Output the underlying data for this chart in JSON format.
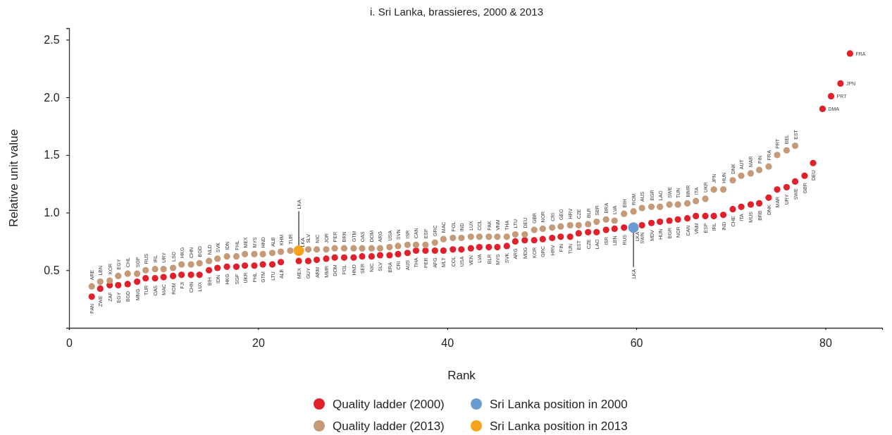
{
  "chart_data": {
    "type": "scatter",
    "title": "i. Sri Lanka, brassieres, 2000 & 2013",
    "xlabel": "Rank",
    "ylabel": "Relative unit value",
    "marker": "circle",
    "legend": "bottom",
    "xlim": [
      0,
      86
    ],
    "ylim": [
      0,
      2.6
    ],
    "xticks": [
      0,
      20,
      40,
      60,
      80
    ],
    "yticks": [
      {
        "value": 0.5,
        "label": "0.5"
      },
      {
        "value": 1,
        "label": "1.0"
      },
      {
        "value": 1.5,
        "label": "1.5"
      },
      {
        "value": 2,
        "label": "2.0"
      },
      {
        "value": 2.5,
        "label": "2.5"
      }
    ],
    "x": [
      2.4,
      3.3,
      4.3,
      5.2,
      6.2,
      7.2,
      8.1,
      9.1,
      10.0,
      11.0,
      11.9,
      12.9,
      13.8,
      14.8,
      15.7,
      16.7,
      17.7,
      18.6,
      19.6,
      20.5,
      21.5,
      22.4,
      23.4,
      24.3,
      25.3,
      26.2,
      27.2,
      28.1,
      29.1,
      30.1,
      31.0,
      32.0,
      32.9,
      33.9,
      34.8,
      35.8,
      36.7,
      37.7,
      38.7,
      39.6,
      40.6,
      41.5,
      42.5,
      43.4,
      44.4,
      45.3,
      46.3,
      47.2,
      48.2,
      49.2,
      50.1,
      51.1,
      52.0,
      53.0,
      53.9,
      54.9,
      55.8,
      56.8,
      57.7,
      58.7,
      59.7,
      60.6,
      61.6,
      62.5,
      63.5,
      64.4,
      65.4,
      66.3,
      67.3,
      68.2,
      69.2,
      70.2,
      71.1,
      72.1,
      73.0,
      74.0,
      74.9,
      75.9,
      76.8,
      77.8,
      78.7,
      79.7,
      80.6,
      81.6,
      82.6
    ],
    "series": [
      {
        "name": "Quality ladder (2000)",
        "color": "#e0202b",
        "values": [
          0.27,
          0.34,
          0.37,
          0.37,
          0.38,
          0.4,
          0.43,
          0.43,
          0.44,
          0.45,
          0.46,
          0.46,
          0.46,
          0.5,
          0.52,
          0.53,
          0.53,
          0.54,
          0.54,
          0.55,
          0.55,
          0.57,
          null,
          0.58,
          0.58,
          0.59,
          0.6,
          0.61,
          0.61,
          0.61,
          0.62,
          0.62,
          0.63,
          0.63,
          0.64,
          0.65,
          0.67,
          0.67,
          0.67,
          0.67,
          0.68,
          0.68,
          0.69,
          0.7,
          0.7,
          0.7,
          0.71,
          0.75,
          0.76,
          0.76,
          0.77,
          0.78,
          0.79,
          0.79,
          0.82,
          0.83,
          0.83,
          0.85,
          0.86,
          0.87,
          null,
          0.89,
          0.91,
          0.92,
          0.93,
          0.94,
          0.95,
          0.97,
          0.97,
          0.97,
          0.98,
          1.03,
          1.05,
          1.07,
          1.08,
          1.13,
          1.2,
          1.22,
          1.27,
          1.32,
          1.43,
          1.9,
          2.01,
          2.12,
          2.38
        ],
        "value_labels": [
          "PAN",
          "ZWE",
          "ZAF",
          "EGY",
          "BGD",
          "MNG",
          "TUR",
          "OAS",
          "MAC",
          "ROM",
          "FJI",
          "CHN",
          "LUX",
          "BIH",
          "IDN",
          "HKG",
          "SGP",
          "UKR",
          "PHL",
          "GTM",
          "LTU",
          "ALB",
          null,
          "MEX",
          "GUY",
          "ARM",
          "MMR",
          "DOM",
          "POL",
          "HND",
          "SER",
          "NIC",
          "SLV",
          "BRA",
          "CRI",
          "AUS",
          "THA",
          "PER",
          "AFG",
          "MLT",
          "COL",
          "USA",
          "VEN",
          "LVA",
          "BLR",
          "MYS",
          "SVK",
          "ARG",
          "MDG",
          "KOR",
          "GRC",
          "HRV",
          "FIN",
          "TUN",
          "EST",
          "CZE",
          "LAO",
          "ISR",
          "LBN",
          "RUS",
          null,
          "SWN",
          "MDV",
          "HUN",
          "BGR",
          "NOR",
          "CAN",
          "VNM",
          "ESP",
          "IRL",
          "IND",
          "CHE",
          "ITA",
          "MUS",
          "BRB",
          "DNK",
          "MAR",
          "URY",
          "SWE",
          "GBR",
          "DEU",
          "DMA",
          "PRT",
          "JPN",
          "FRA"
        ]
      },
      {
        "name": "Quality ladder (2013)",
        "color": "#c49a78",
        "values": [
          0.36,
          0.4,
          0.41,
          0.45,
          0.47,
          0.47,
          0.5,
          0.51,
          0.51,
          0.52,
          0.55,
          0.55,
          0.56,
          0.58,
          0.6,
          0.62,
          0.62,
          0.64,
          0.64,
          0.64,
          0.65,
          0.66,
          0.67,
          null,
          0.68,
          0.68,
          0.68,
          0.69,
          0.69,
          0.69,
          0.69,
          0.69,
          0.69,
          0.7,
          0.71,
          0.72,
          0.72,
          0.72,
          0.74,
          0.77,
          0.78,
          0.78,
          0.79,
          0.79,
          0.79,
          0.79,
          0.79,
          0.81,
          0.81,
          0.85,
          0.86,
          0.87,
          0.88,
          0.89,
          0.89,
          0.9,
          0.92,
          0.94,
          0.93,
          0.99,
          1.01,
          1.04,
          1.05,
          1.05,
          1.07,
          1.07,
          1.08,
          1.1,
          1.12,
          1.2,
          1.2,
          1.28,
          1.32,
          1.34,
          1.37,
          1.4,
          1.5,
          1.54,
          1.58,
          null,
          null,
          null,
          null,
          null,
          null
        ],
        "value_labels": [
          "ARE",
          "LBN",
          "KOR",
          "EGY",
          "CHL",
          "SGP",
          "RUS",
          "IRL",
          "URY",
          "LSO",
          "HKG",
          "CHN",
          "BGD",
          "NLD",
          "SVK",
          "IDN",
          "PHL",
          "MEX",
          "MYS",
          "HND",
          "ALB",
          "KHM",
          "TUR",
          null,
          "SLV",
          "NIC",
          "JOR",
          "PER",
          "BRN",
          "GTM",
          "OAS",
          "DOM",
          "ARG",
          "USA",
          "SVN",
          "ISR",
          "CAN",
          "ESP",
          "GRC",
          "MAC",
          "POL",
          "IND",
          "LUX",
          "COL",
          "PAK",
          "VNM",
          "THA",
          "LTU",
          "DEU",
          "GBR",
          "NOR",
          "CRI",
          "GEO",
          "HRV",
          "CZE",
          "BLR",
          "SBR",
          "BRA",
          "LVA",
          "BIH",
          "ROM",
          "AUS",
          "BGR",
          "LAO",
          "SWE",
          "TUN",
          "MMR",
          "ITA",
          "UKR",
          "JPN",
          "HUN",
          "DNK",
          "AUT",
          "MAR",
          "FIN",
          "FRA",
          "PRT",
          "BEL",
          "EST",
          null,
          null,
          null,
          null,
          null,
          null
        ]
      },
      {
        "name": "Sri Lanka position in 2000",
        "color": "#6a9bd1",
        "x": [
          59.7
        ],
        "values": [
          0.87
        ],
        "value_labels": [
          "LKA"
        ]
      },
      {
        "name": "Sri Lanka position in 2013",
        "color": "#f7a21b",
        "x": [
          24.3
        ],
        "values": [
          0.67
        ],
        "value_labels": [
          "LKA"
        ]
      }
    ],
    "annotations": [
      {
        "text": "LKA",
        "x": 24.3,
        "y": 0.67
      },
      {
        "text": "LKA",
        "x": 59.7,
        "y": 0.87
      }
    ]
  }
}
